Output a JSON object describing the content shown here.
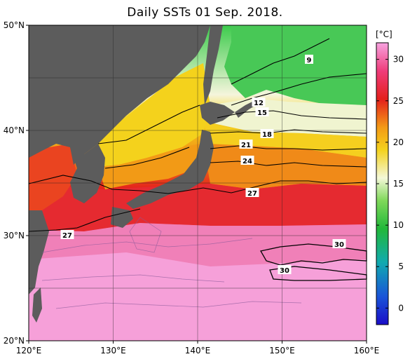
{
  "title": "Daily SSTs 01 Sep. 2018.",
  "map": {
    "lon_ticks": [
      "120°E",
      "130°E",
      "140°E",
      "150°E",
      "160°E"
    ],
    "lat_ticks": [
      "50°N",
      "40°N",
      "30°N",
      "20°N"
    ],
    "extent": {
      "lon": [
        120,
        160
      ],
      "lat": [
        20,
        50
      ]
    }
  },
  "contour_labels": [
    "9",
    "12",
    "15",
    "18",
    "21",
    "24",
    "27",
    "27",
    "30",
    "30"
  ],
  "colorbar": {
    "unit": "[°C]",
    "ticks": [
      "30",
      "25",
      "20",
      "15",
      "10",
      "5",
      "0"
    ],
    "range": [
      -2,
      32
    ]
  },
  "colors": {
    "land": "#5c5c5c",
    "background": "#ffffff"
  }
}
